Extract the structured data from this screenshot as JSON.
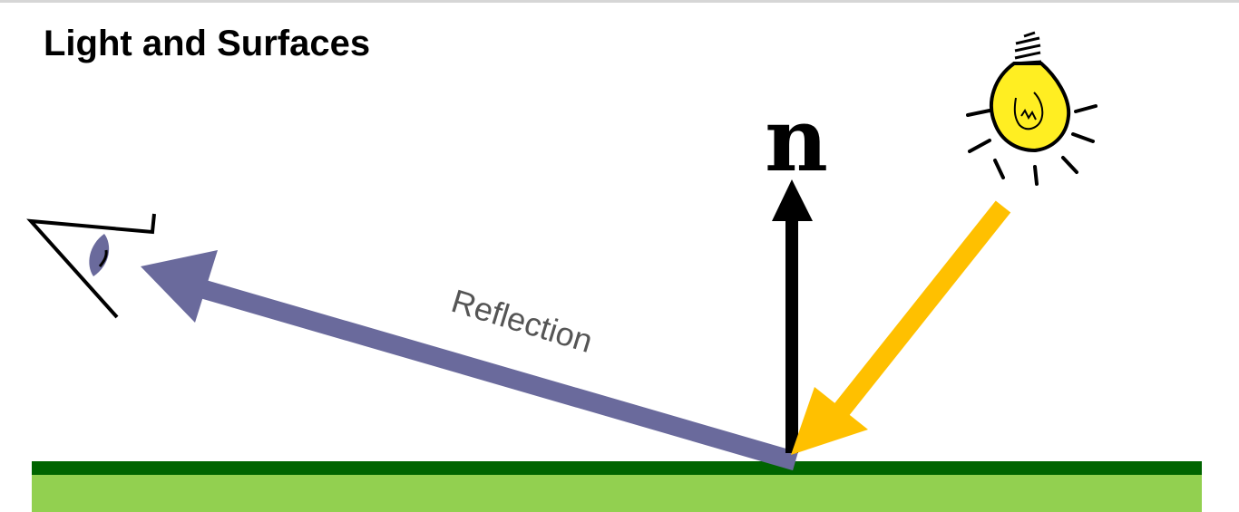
{
  "slide": {
    "title": "Light and Surfaces"
  },
  "diagram": {
    "normal_label": "n",
    "reflection_label": "Reflection",
    "colors": {
      "surface_top": "#006400",
      "surface_fill": "#92d050",
      "reflection_ray": "#6a6a9c",
      "incident_ray": "#ffc000",
      "normal_vector": "#000000",
      "bulb": "#ffee22",
      "text_gray": "#555555"
    },
    "icons": [
      "eye-icon",
      "light-bulb-icon"
    ]
  }
}
